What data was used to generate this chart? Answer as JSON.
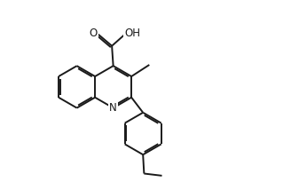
{
  "bg_color": "#ffffff",
  "line_color": "#1a1a1a",
  "line_width": 1.4,
  "font_size": 8.5,
  "figsize": [
    3.19,
    2.14
  ],
  "dpi": 100,
  "xlim": [
    0,
    10
  ],
  "ylim": [
    0,
    7
  ]
}
